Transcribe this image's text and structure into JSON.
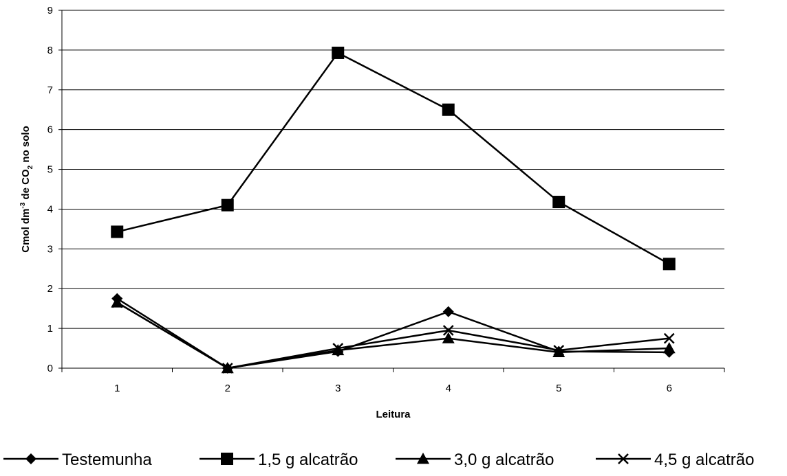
{
  "chart_data": {
    "type": "line",
    "xlabel": "Leitura",
    "ylabel": "Cmol dm-3 de CO2 no solo",
    "ylabel_parts": {
      "pre": "Cmol dm",
      "sup": "-3",
      "mid": " de CO",
      "sub": "2",
      "post": " no solo"
    },
    "categories": [
      "1",
      "2",
      "3",
      "4",
      "5",
      "6"
    ],
    "ylim": [
      0,
      9
    ],
    "yticks": [
      "0",
      "1",
      "2",
      "3",
      "4",
      "5",
      "6",
      "7",
      "8",
      "9"
    ],
    "grid": true,
    "legend_position": "bottom",
    "series": [
      {
        "name": "Testemunha",
        "marker": "diamond",
        "color": "#000000",
        "values": [
          1.75,
          0.0,
          0.42,
          1.42,
          0.42,
          0.4
        ]
      },
      {
        "name": "1,5 g alcatrão",
        "marker": "square",
        "color": "#000000",
        "values": [
          3.43,
          4.1,
          7.93,
          6.5,
          4.18,
          2.62
        ]
      },
      {
        "name": "3,0 g alcatrão",
        "marker": "triangle",
        "color": "#000000",
        "values": [
          1.65,
          0.0,
          0.45,
          0.75,
          0.4,
          0.5
        ]
      },
      {
        "name": "4,5 g alcatrão",
        "marker": "x",
        "color": "#000000",
        "values": [
          1.65,
          0.0,
          0.5,
          0.95,
          0.45,
          0.75
        ]
      }
    ]
  }
}
